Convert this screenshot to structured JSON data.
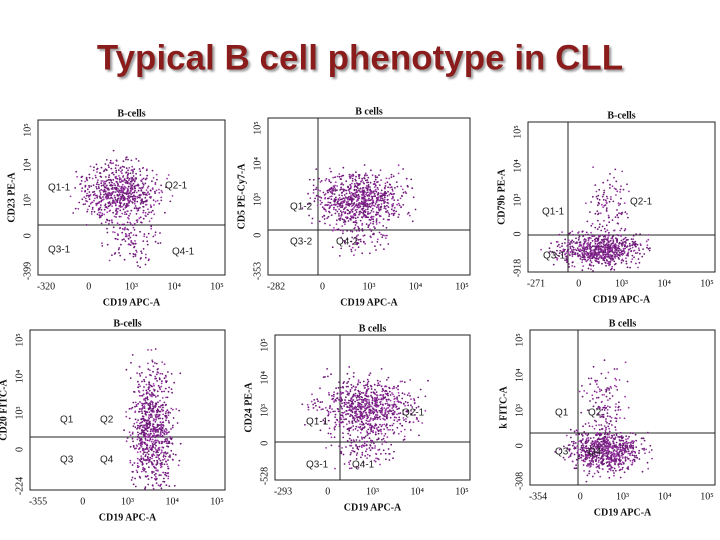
{
  "title": "Typical B cell phenotype in CLL",
  "panels": [
    {
      "gate": "B-cells",
      "x_label": "CD19 APC-A",
      "y_label": "CD23 PE-A",
      "quadrants": [
        "Q1-1",
        "Q2-1",
        "Q3-1",
        "Q4-1"
      ],
      "x_ticks": [
        "-320",
        "0",
        "10³",
        "10⁴",
        "10⁵"
      ],
      "y_ticks": [
        "-399",
        "0",
        "10³",
        "10⁴",
        "10⁵"
      ]
    },
    {
      "gate": "B cells",
      "x_label": "CD19 APC-A",
      "y_label": "CD5 PE-Cy7-A",
      "quadrants": [
        "Q1-2",
        "",
        "Q3-2",
        "Q4-2"
      ],
      "x_ticks": [
        "-282",
        "0",
        "10³",
        "10⁴",
        "10⁵"
      ],
      "y_ticks": [
        "-353",
        "0",
        "10³",
        "10⁴",
        "10⁵"
      ]
    },
    {
      "gate": "B-cells",
      "x_label": "CD19 APC-A",
      "y_label": "CD79b PE-A",
      "quadrants": [
        "Q1-1",
        "Q2-1",
        "Q3-1"
      ],
      "x_ticks": [
        "-271",
        "0",
        "10³",
        "10⁴",
        "10⁵"
      ],
      "y_ticks": [
        "-918",
        "0",
        "10³",
        "10⁴",
        "10⁵"
      ]
    },
    {
      "gate": "B-cells",
      "x_label": "CD19 APC-A",
      "y_label": "CD20 FITC-A",
      "quadrants": [
        "Q1",
        "Q2",
        "Q3",
        "Q4"
      ],
      "x_ticks": [
        "-355",
        "0",
        "10³",
        "10⁴",
        "10⁵"
      ],
      "y_ticks": [
        "-224",
        "0",
        "10³",
        "10⁴",
        "10⁵"
      ]
    },
    {
      "gate": "B cells",
      "x_label": "CD19 APC-A",
      "y_label": "CD24 PE-A",
      "quadrants": [
        "Q1-1",
        "Q2-1",
        "Q3-1",
        "Q4-1"
      ],
      "x_ticks": [
        "-293",
        "0",
        "10³",
        "10⁴",
        "10⁵"
      ],
      "y_ticks": [
        "-528",
        "0",
        "10³",
        "10⁴",
        "10⁵"
      ]
    },
    {
      "gate": "B cells",
      "x_label": "CD19 APC-A",
      "y_label": "k FITC-A",
      "quadrants": [
        "Q1",
        "Q2",
        "Q3",
        "Q4"
      ],
      "x_ticks": [
        "-354",
        "0",
        "10³",
        "10⁴",
        "10⁵"
      ],
      "y_ticks": [
        "-308",
        "0",
        "10³",
        "10⁴",
        "10⁵"
      ]
    }
  ]
}
